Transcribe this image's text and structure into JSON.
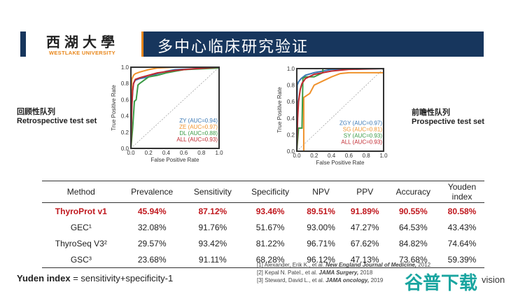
{
  "header": {
    "logo_cn": "西湖大學",
    "logo_en": "WESTLAKE UNIVERSITY",
    "title": "多中心临床研究验证",
    "accent": "#17365d",
    "orange": "#e8861a"
  },
  "left_label": {
    "cn": "回顾性队列",
    "en": "Retrospective test set"
  },
  "right_label": {
    "cn": "前瞻性队列",
    "en": "Prospective test set"
  },
  "chart_data": [
    {
      "type": "line",
      "xlabel": "False Positive Rate",
      "ylabel": "True Positive Rate",
      "xlim": [
        0,
        1
      ],
      "ylim": [
        0,
        1
      ],
      "ticks": [
        "0.0",
        "0.2",
        "0.4",
        "0.6",
        "0.8",
        "1.0"
      ],
      "legend": "bottom-right",
      "series": [
        {
          "name": "ZY (AUC=0.94)",
          "color": "#3a78b5",
          "x": [
            0,
            0.01,
            0.02,
            0.03,
            0.05,
            0.1,
            0.2,
            0.3,
            0.4,
            0.5,
            0.7,
            1
          ],
          "y": [
            0,
            0.5,
            0.7,
            0.8,
            0.84,
            0.86,
            0.88,
            0.92,
            0.95,
            0.97,
            0.98,
            1
          ]
        },
        {
          "name": "ZE (AUC=0.97)",
          "color": "#f0922c",
          "x": [
            0,
            0.005,
            0.01,
            0.03,
            0.05,
            0.1,
            0.2,
            0.3,
            0.5,
            1
          ],
          "y": [
            0,
            0.7,
            0.85,
            0.9,
            0.92,
            0.94,
            0.97,
            0.99,
            1,
            1
          ]
        },
        {
          "name": "DL (AUC=0.88)",
          "color": "#3a9a45",
          "x": [
            0,
            0.02,
            0.04,
            0.06,
            0.08,
            0.1,
            0.2,
            0.3,
            0.4,
            0.6,
            1
          ],
          "y": [
            0,
            0.25,
            0.58,
            0.6,
            0.78,
            0.8,
            0.88,
            0.9,
            0.93,
            0.97,
            0.99
          ]
        },
        {
          "name": "ALL (AUC=0.93)",
          "color": "#c0282e",
          "x": [
            0,
            0.01,
            0.02,
            0.03,
            0.05,
            0.1,
            0.2,
            0.3,
            0.5,
            0.7,
            1
          ],
          "y": [
            0,
            0.5,
            0.72,
            0.8,
            0.85,
            0.87,
            0.9,
            0.93,
            0.96,
            0.98,
            1
          ]
        }
      ]
    },
    {
      "type": "line",
      "xlabel": "False Positive Rate",
      "ylabel": "True Positive Rate",
      "xlim": [
        0,
        1
      ],
      "ylim": [
        0,
        1
      ],
      "ticks": [
        "0.0",
        "0.2",
        "0.4",
        "0.6",
        "0.8",
        "1.0"
      ],
      "legend": "bottom-right",
      "series": [
        {
          "name": "ZGY (AUC=0.97)",
          "color": "#3a78b5",
          "x": [
            0,
            0.005,
            0.02,
            0.05,
            0.1,
            0.2,
            0.3,
            0.4,
            1
          ],
          "y": [
            0,
            0.8,
            0.84,
            0.88,
            0.92,
            0.95,
            0.97,
            0.99,
            1
          ]
        },
        {
          "name": "SG (AUC=0.81)",
          "color": "#f0922c",
          "x": [
            0,
            0.08,
            0.08,
            0.15,
            0.2,
            0.3,
            0.4,
            0.5,
            0.6,
            1
          ],
          "y": [
            0,
            0,
            0.65,
            0.7,
            0.8,
            0.85,
            0.9,
            0.94,
            0.95,
            0.95
          ]
        },
        {
          "name": "SY (AUC=0.93)",
          "color": "#3a9a45",
          "x": [
            0,
            0.02,
            0.06,
            0.07,
            0.1,
            0.2,
            0.3,
            0.3,
            1
          ],
          "y": [
            0,
            0.28,
            0.28,
            0.88,
            0.9,
            0.9,
            0.95,
            1,
            1
          ]
        },
        {
          "name": "ALL (AUC=0.93)",
          "color": "#c0282e",
          "x": [
            0,
            0.01,
            0.02,
            0.04,
            0.06,
            0.1,
            0.2,
            0.4,
            0.6,
            1
          ],
          "y": [
            0,
            0.4,
            0.6,
            0.75,
            0.82,
            0.88,
            0.93,
            0.97,
            0.99,
            1
          ]
        }
      ]
    }
  ],
  "table": {
    "headers": [
      "Method",
      "Prevalence",
      "Sensitivity",
      "Specificity",
      "NPV",
      "PPV",
      "Accuracy",
      "Youden index"
    ],
    "rows": [
      [
        "ThyroProt v1",
        "45.94%",
        "87.12%",
        "93.46%",
        "89.51%",
        "91.89%",
        "90.55%",
        "80.58%"
      ],
      [
        "GEC¹",
        "32.08%",
        "91.76%",
        "51.67%",
        "93.00%",
        "47.27%",
        "64.53%",
        "43.43%"
      ],
      [
        "ThyroSeq V3²",
        "29.57%",
        "93.42%",
        "81.22%",
        "96.71%",
        "67.62%",
        "84.82%",
        "74.64%"
      ],
      [
        "GSC³",
        "23.68%",
        "91.11%",
        "68.28%",
        "96.12%",
        "47.13%",
        "73.68%",
        "59.39%"
      ]
    ]
  },
  "youden_def": {
    "bold": "Yuden index",
    "rest": " = sensitivity+specificity-1"
  },
  "refs": [
    {
      "pre": "[1] Alexander, Erik K., et al. ",
      "journal": "New England Journal of Medicine,",
      "post": " 2012"
    },
    {
      "pre": "[2] Kepal N. Patel., et al. ",
      "journal": "JAMA Surgery,",
      "post": " 2018"
    },
    {
      "pre": "[3] Steward, David L., et al. ",
      "journal": "JAMA oncology,",
      "post": " 2019"
    }
  ],
  "watermark": {
    "cn": "谷普下载",
    "en": "vision"
  }
}
